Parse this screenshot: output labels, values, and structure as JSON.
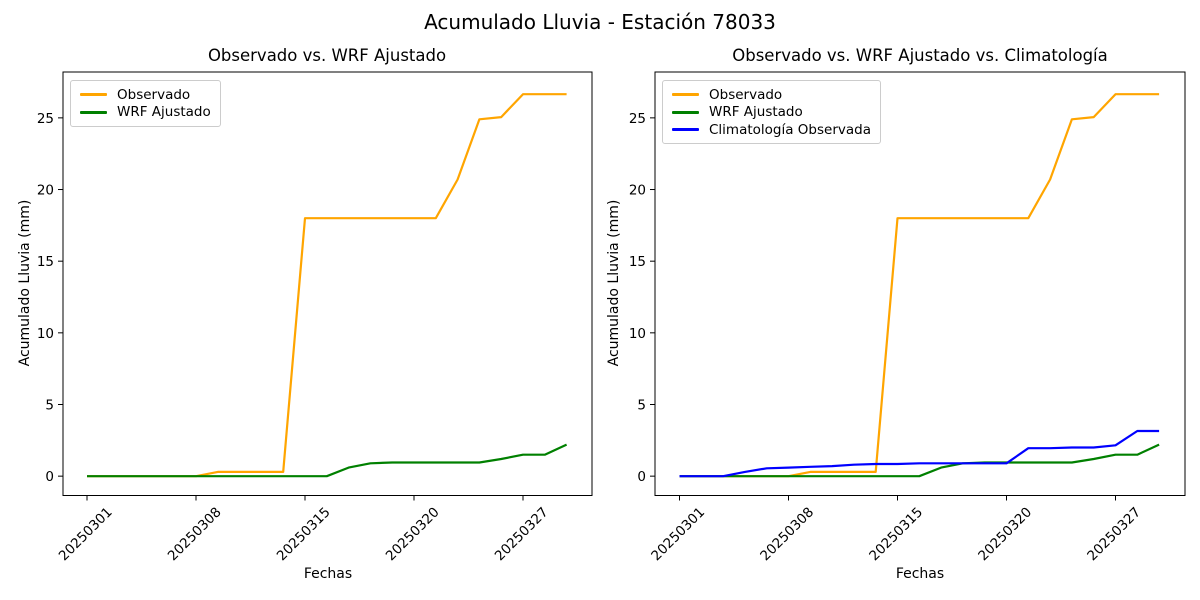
{
  "figure": {
    "suptitle": "Acumulado Lluvia - Estación 78033",
    "background": "#ffffff",
    "text_color": "#000000",
    "spine_color": "#000000"
  },
  "chart_data": [
    {
      "type": "line",
      "title": "Observado vs. WRF Ajustado",
      "xlabel": "Fechas",
      "ylabel": "Acumulado Lluvia (mm)",
      "grid": false,
      "legend_position": "upper left",
      "n_points": 23,
      "x_tick_indices": [
        0,
        5,
        10,
        15,
        20
      ],
      "x_tick_labels": [
        "20250301",
        "20250308",
        "20250315",
        "20250320",
        "20250327"
      ],
      "x_tick_rotation_deg": 45,
      "yticks": [
        0,
        5,
        10,
        15,
        20,
        25
      ],
      "ylim": [
        -1.35,
        28.2
      ],
      "series": [
        {
          "name": "Observado",
          "color": "#FFA500",
          "values": [
            0,
            0,
            0,
            0,
            0,
            0,
            0.3,
            0.3,
            0.3,
            0.3,
            18,
            18,
            18,
            18,
            18,
            18,
            18,
            20.7,
            24.9,
            25.05,
            26.65,
            26.65,
            26.65
          ]
        },
        {
          "name": "WRF Ajustado",
          "color": "#008000",
          "values": [
            0,
            0,
            0,
            0,
            0,
            0,
            0,
            0,
            0,
            0,
            0,
            0,
            0.6,
            0.9,
            0.95,
            0.95,
            0.95,
            0.95,
            0.95,
            1.2,
            1.5,
            1.5,
            2.2
          ]
        }
      ]
    },
    {
      "type": "line",
      "title": "Observado vs. WRF Ajustado vs. Climatología",
      "xlabel": "Fechas",
      "ylabel": "Acumulado Lluvia (mm)",
      "grid": false,
      "legend_position": "upper left",
      "n_points": 23,
      "x_tick_indices": [
        0,
        5,
        10,
        15,
        20
      ],
      "x_tick_labels": [
        "20250301",
        "20250308",
        "20250315",
        "20250320",
        "20250327"
      ],
      "x_tick_rotation_deg": 45,
      "yticks": [
        0,
        5,
        10,
        15,
        20,
        25
      ],
      "ylim": [
        -1.35,
        28.2
      ],
      "series": [
        {
          "name": "Observado",
          "color": "#FFA500",
          "values": [
            0,
            0,
            0,
            0,
            0,
            0,
            0.3,
            0.3,
            0.3,
            0.3,
            18,
            18,
            18,
            18,
            18,
            18,
            18,
            20.7,
            24.9,
            25.05,
            26.65,
            26.65,
            26.65
          ]
        },
        {
          "name": "WRF Ajustado",
          "color": "#008000",
          "values": [
            0,
            0,
            0,
            0,
            0,
            0,
            0,
            0,
            0,
            0,
            0,
            0,
            0.6,
            0.9,
            0.95,
            0.95,
            0.95,
            0.95,
            0.95,
            1.2,
            1.5,
            1.5,
            2.2
          ]
        },
        {
          "name": "Climatología Observada",
          "color": "#0000FF",
          "values": [
            0,
            0,
            0,
            0.3,
            0.55,
            0.6,
            0.65,
            0.7,
            0.8,
            0.85,
            0.85,
            0.9,
            0.9,
            0.9,
            0.9,
            0.9,
            1.95,
            1.95,
            2.0,
            2.0,
            2.15,
            3.15,
            3.15
          ]
        }
      ]
    }
  ]
}
